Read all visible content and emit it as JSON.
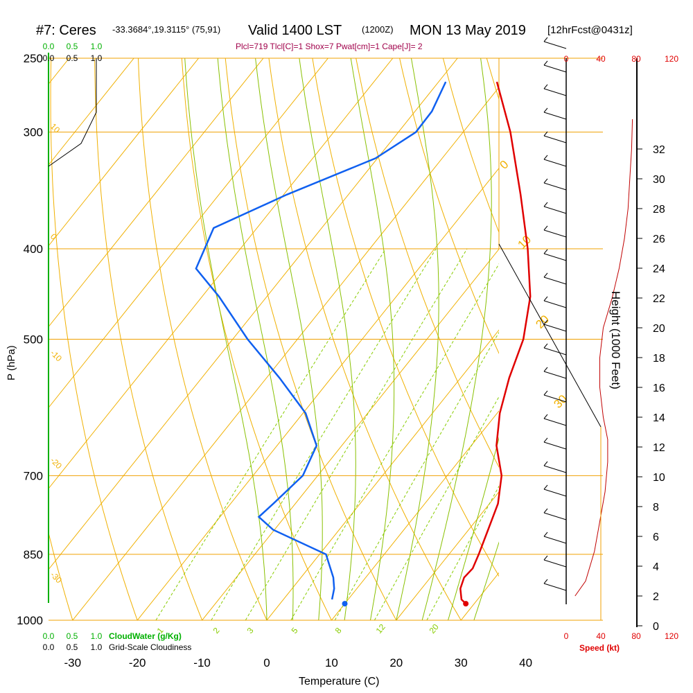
{
  "header": {
    "station": "#7: Ceres",
    "coords": "-33.3684°,19.3115° (75,91)",
    "valid": "Valid 1400 LST",
    "utc": "(1200Z)",
    "date": "MON 13 May 2019",
    "fcst": "[12hrFcst@0431z]",
    "indices": "Plcl=719 Tlcl[C]=1 Shox=7 Pwat[cm]=1 Cape[J]= 2"
  },
  "colors": {
    "isobar": "#f0a000",
    "skewT": "#f0b000",
    "dryAdiabat": "#f0b000",
    "moistAdiabat": "#88c000",
    "mixingRatio": "#88cc00",
    "temperature": "#e00000",
    "dewpoint": "#1060f0",
    "cloud": "#00b000",
    "wind": "#c00000",
    "header": "#000000",
    "indices": "#a0004a"
  },
  "chart_data": {
    "type": "line",
    "xlabel": "Temperature (C)",
    "ylabel": "P (hPa)",
    "right_label": "Height (1000 Feet)",
    "x_ticks": [
      -30,
      -20,
      -10,
      0,
      10,
      20,
      30,
      40
    ],
    "p_ticks": [
      250,
      300,
      400,
      500,
      700,
      850,
      1000
    ],
    "p_tick_labels": [
      "250",
      "300",
      "400",
      "500",
      "700",
      "850",
      "1000"
    ],
    "height_ticks": [
      0,
      2,
      4,
      6,
      8,
      10,
      12,
      14,
      16,
      18,
      20,
      22,
      24,
      26,
      28,
      30,
      32
    ],
    "temperature_profile": [
      {
        "p": 960,
        "t": 28.7
      },
      {
        "p": 950,
        "t": 27.5
      },
      {
        "p": 925,
        "t": 26.0
      },
      {
        "p": 900,
        "t": 25.2
      },
      {
        "p": 880,
        "t": 25.4
      },
      {
        "p": 850,
        "t": 24.6
      },
      {
        "p": 800,
        "t": 23.0
      },
      {
        "p": 750,
        "t": 21.3
      },
      {
        "p": 700,
        "t": 18.4
      },
      {
        "p": 650,
        "t": 13.9
      },
      {
        "p": 600,
        "t": 10.4
      },
      {
        "p": 550,
        "t": 7.5
      },
      {
        "p": 500,
        "t": 4.9
      },
      {
        "p": 450,
        "t": 0.7
      },
      {
        "p": 400,
        "t": -5.6
      },
      {
        "p": 350,
        "t": -13.4
      },
      {
        "p": 300,
        "t": -22.7
      },
      {
        "p": 265,
        "t": -31.0
      }
    ],
    "dewpoint_profile": [
      {
        "p": 950,
        "t": 7.5
      },
      {
        "p": 925,
        "t": 6.5
      },
      {
        "p": 900,
        "t": 5.0
      },
      {
        "p": 850,
        "t": 1.0
      },
      {
        "p": 800,
        "t": -10.2
      },
      {
        "p": 775,
        "t": -14.0
      },
      {
        "p": 750,
        "t": -13.4
      },
      {
        "p": 700,
        "t": -12.3
      },
      {
        "p": 650,
        "t": -13.9
      },
      {
        "p": 600,
        "t": -19.6
      },
      {
        "p": 550,
        "t": -28.0
      },
      {
        "p": 500,
        "t": -37.7
      },
      {
        "p": 450,
        "t": -47.4
      },
      {
        "p": 420,
        "t": -54.4
      },
      {
        "p": 380,
        "t": -56.7
      },
      {
        "p": 350,
        "t": -49.5
      },
      {
        "p": 320,
        "t": -40.3
      },
      {
        "p": 300,
        "t": -37.3
      },
      {
        "p": 285,
        "t": -37.4
      },
      {
        "p": 265,
        "t": -38.9
      }
    ],
    "surface": {
      "temperature": 28.7,
      "dewpoint": 10.0,
      "p": 960
    },
    "isotherm_labels": [
      "0",
      "10",
      "20",
      "30"
    ],
    "dry_adiabat_labels": [
      "10",
      "0",
      "-10",
      "-20",
      "-30"
    ],
    "mixing_ratio_labels": [
      "1",
      "2",
      "3",
      "5",
      "8",
      "12",
      "20"
    ],
    "cloud_panel": {
      "top_ticks_cloudwater": [
        "0.0",
        "0.5",
        "1.0"
      ],
      "top_ticks_cloudiness": [
        "0.0",
        "0.5",
        "1.0"
      ],
      "bottom_ticks_cloudwater": [
        "0.0",
        "0.5",
        "1.0"
      ],
      "cloudwater_label": "CloudWater (g/Kg)",
      "bottom_ticks_cloudiness": [
        "0.0",
        "0.5",
        "1.0"
      ],
      "cloudiness_label": "Grid-Scale Cloudiness"
    },
    "wind_speed": {
      "label": "Speed (kt)",
      "top_ticks": [
        "0",
        "40",
        "80",
        "120"
      ],
      "bottom_ticks": [
        "0",
        "40",
        "80",
        "120"
      ],
      "profile_kt": [
        {
          "h": 2,
          "s": 10
        },
        {
          "h": 3,
          "s": 22
        },
        {
          "h": 5,
          "s": 32
        },
        {
          "h": 7,
          "s": 38
        },
        {
          "h": 9,
          "s": 44
        },
        {
          "h": 11,
          "s": 47
        },
        {
          "h": 12.5,
          "s": 47
        },
        {
          "h": 14,
          "s": 42
        },
        {
          "h": 16,
          "s": 38
        },
        {
          "h": 18,
          "s": 38
        },
        {
          "h": 20,
          "s": 42
        },
        {
          "h": 22,
          "s": 52
        },
        {
          "h": 24,
          "s": 60
        },
        {
          "h": 26,
          "s": 66
        },
        {
          "h": 28,
          "s": 70
        },
        {
          "h": 30,
          "s": 72
        },
        {
          "h": 32,
          "s": 74
        },
        {
          "h": 34,
          "s": 75
        }
      ]
    }
  }
}
